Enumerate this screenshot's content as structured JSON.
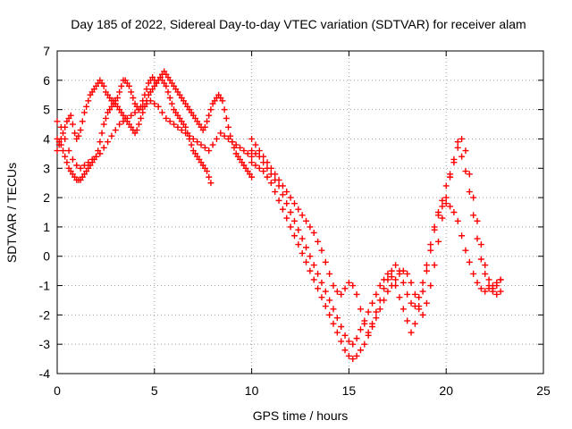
{
  "chart_data": {
    "type": "scatter",
    "title": "Day 185 of 2022, Sidereal Day-to-day VTEC variation (SDTVAR) for receiver alam",
    "xlabel": "GPS time / hours",
    "ylabel": "SDTVAR / TECUs",
    "xlim": [
      0,
      25
    ],
    "ylim": [
      -4,
      7
    ],
    "xticks": [
      "0",
      "5",
      "10",
      "15",
      "20",
      "25"
    ],
    "yticks": [
      "-4",
      "-3",
      "-2",
      "-1",
      "0",
      "1",
      "2",
      "3",
      "4",
      "5",
      "6",
      "7"
    ],
    "grid": true,
    "marker": "+",
    "color": "#ff0000",
    "series": [
      {
        "x": [
          0.0,
          0.1,
          0.2,
          0.3,
          0.4,
          0.5,
          0.6,
          0.7,
          0.8,
          0.9,
          1.0,
          1.1,
          1.2,
          1.3,
          1.4,
          1.5,
          1.6,
          1.7,
          1.8,
          1.9,
          2.0,
          2.1,
          2.2,
          2.3,
          2.4,
          2.5,
          2.6,
          2.7,
          2.8,
          2.9,
          3.0,
          3.1,
          3.2,
          3.3,
          3.4,
          3.5,
          3.6,
          3.7,
          3.8,
          3.9,
          4.0,
          4.1,
          4.2,
          4.3,
          4.4,
          4.5,
          4.6,
          4.7,
          4.8,
          4.9,
          5.0,
          5.1,
          5.2,
          5.3,
          5.4,
          5.5,
          5.6,
          5.7,
          5.8,
          5.9,
          6.0,
          6.1,
          6.2,
          6.3,
          6.4,
          6.5,
          6.6,
          6.7,
          6.8,
          6.9,
          7.0,
          7.1,
          7.2,
          7.3,
          7.4,
          7.5,
          7.6,
          7.7,
          7.8,
          7.9
        ],
        "y": [
          4.0,
          3.9,
          3.8,
          3.6,
          3.4,
          3.2,
          3.0,
          2.9,
          2.8,
          2.7,
          2.6,
          2.6,
          2.6,
          2.7,
          2.8,
          2.9,
          3.0,
          3.1,
          3.2,
          3.3,
          3.4,
          3.6,
          3.9,
          4.2,
          4.5,
          4.7,
          4.9,
          5.0,
          5.1,
          5.2,
          5.3,
          5.4,
          5.6,
          5.8,
          6.0,
          6.0,
          5.9,
          5.8,
          5.6,
          5.4,
          5.2,
          5.1,
          5.0,
          5.1,
          5.3,
          5.5,
          5.7,
          5.9,
          6.0,
          6.1,
          6.0,
          5.9,
          6.0,
          6.1,
          6.0,
          5.9,
          5.8,
          5.6,
          5.4,
          5.2,
          5.0,
          4.9,
          4.8,
          4.7,
          4.6,
          4.5,
          4.4,
          4.2,
          4.0,
          3.8,
          3.6,
          3.5,
          3.4,
          3.3,
          3.2,
          3.1,
          3.0,
          2.9,
          2.7,
          2.5
        ]
      },
      {
        "x": [
          0.0,
          0.1,
          0.2,
          0.3,
          0.4,
          0.5,
          0.6,
          0.7,
          0.8,
          0.9,
          1.0,
          1.1,
          1.2,
          1.3,
          1.4,
          1.5,
          1.6,
          1.7,
          1.8,
          1.9,
          2.0,
          2.1,
          2.2,
          2.3,
          2.4,
          2.5,
          2.6,
          2.7,
          2.8,
          2.9,
          3.0,
          3.1,
          3.2,
          3.3,
          3.4,
          3.5,
          3.6,
          3.7,
          3.8,
          3.9,
          4.0,
          4.1,
          4.2,
          4.3,
          4.4,
          4.5,
          4.6,
          4.7,
          4.8,
          4.9,
          5.0,
          5.1,
          5.2,
          5.3,
          5.4,
          5.5,
          5.6,
          5.7,
          5.8,
          5.9,
          6.0,
          6.1,
          6.2,
          6.3,
          6.4,
          6.5,
          6.6,
          6.7,
          6.8,
          6.9,
          7.0,
          7.1,
          7.2,
          7.3,
          7.4,
          7.5,
          7.6,
          7.7,
          7.8,
          7.9,
          8.0,
          8.1,
          8.2,
          8.3,
          8.4,
          8.5,
          8.6,
          8.7,
          8.8,
          8.9,
          9.0,
          9.1,
          9.2,
          9.3,
          9.4,
          9.5,
          9.6,
          9.7,
          9.8,
          9.9,
          10.0
        ],
        "y": [
          3.6,
          3.8,
          4.0,
          4.2,
          4.4,
          4.6,
          4.7,
          4.8,
          4.5,
          4.2,
          4.0,
          4.1,
          4.3,
          4.6,
          4.9,
          5.1,
          5.3,
          5.5,
          5.6,
          5.7,
          5.8,
          5.9,
          6.0,
          5.9,
          5.8,
          5.6,
          5.5,
          5.4,
          5.3,
          5.3,
          5.2,
          5.1,
          5.0,
          4.9,
          4.8,
          4.7,
          4.6,
          4.5,
          4.4,
          4.3,
          4.2,
          4.3,
          4.5,
          4.7,
          4.9,
          5.1,
          5.3,
          5.5,
          5.6,
          5.7,
          5.8,
          5.9,
          6.0,
          6.1,
          6.2,
          6.3,
          6.2,
          6.1,
          6.0,
          5.9,
          5.8,
          5.7,
          5.6,
          5.5,
          5.4,
          5.3,
          5.2,
          5.1,
          5.0,
          4.9,
          4.8,
          4.7,
          4.6,
          4.5,
          4.4,
          4.3,
          4.4,
          4.6,
          4.8,
          5.0,
          5.2,
          5.3,
          5.4,
          5.5,
          5.4,
          5.3,
          5.0,
          4.7,
          4.4,
          4.1,
          3.9,
          3.7,
          3.5,
          3.4,
          3.3,
          3.2,
          3.1,
          3.0,
          2.9,
          2.8,
          2.7
        ]
      },
      {
        "x": [
          0.0,
          0.2,
          0.4,
          0.6,
          0.8,
          1.0,
          1.2,
          1.4,
          1.6,
          1.8,
          2.0,
          2.2,
          2.4,
          2.6,
          2.8,
          3.0,
          3.2,
          3.4,
          3.6,
          3.8,
          4.0,
          4.2,
          4.4,
          4.6,
          4.8,
          5.0,
          5.2,
          5.4,
          5.6,
          5.8,
          6.0,
          6.2,
          6.4,
          6.6,
          6.8,
          7.0,
          7.2,
          7.4,
          7.6,
          7.8,
          8.0,
          8.2,
          8.4,
          8.6,
          8.8,
          9.0,
          9.2,
          9.4,
          9.6,
          9.8,
          10.0
        ],
        "y": [
          4.6,
          4.4,
          4.0,
          3.6,
          3.3,
          3.1,
          3.0,
          3.1,
          3.2,
          3.3,
          3.4,
          3.5,
          3.7,
          3.9,
          4.1,
          4.3,
          4.5,
          4.6,
          4.7,
          4.8,
          4.9,
          5.0,
          5.1,
          5.2,
          5.3,
          5.2,
          5.1,
          4.9,
          4.7,
          4.6,
          4.5,
          4.4,
          4.3,
          4.2,
          4.1,
          4.0,
          3.9,
          3.8,
          3.7,
          3.6,
          3.8,
          4.0,
          4.2,
          4.1,
          4.0,
          3.9,
          3.8,
          3.7,
          3.6,
          3.5,
          3.4
        ]
      },
      {
        "x": [
          10.0,
          10.2,
          10.4,
          10.6,
          10.8,
          11.0,
          11.2,
          11.4,
          11.6,
          11.8,
          12.0,
          12.2,
          12.4,
          12.6,
          12.8,
          13.0,
          13.2,
          13.4,
          13.6,
          13.8,
          14.0,
          14.2,
          14.4,
          14.6,
          14.8,
          15.0,
          15.2,
          15.4,
          15.6,
          15.8,
          16.0,
          16.2,
          16.4,
          16.6,
          16.8,
          17.0,
          17.2,
          17.4,
          17.6,
          17.8,
          18.0,
          18.2,
          18.4,
          18.6,
          18.8,
          19.0,
          19.2,
          19.4,
          19.6,
          19.8,
          20.0,
          20.2,
          20.4,
          20.6,
          20.8,
          21.0,
          21.2,
          21.4,
          21.6,
          21.8,
          22.0,
          22.2,
          22.4,
          22.6,
          22.8
        ],
        "y": [
          3.2,
          3.1,
          3.0,
          2.9,
          2.7,
          2.5,
          2.2,
          1.9,
          1.6,
          1.3,
          1.0,
          0.7,
          0.4,
          0.1,
          -0.2,
          -0.5,
          -0.8,
          -1.1,
          -1.4,
          -1.7,
          -2.0,
          -2.3,
          -2.6,
          -2.9,
          -3.2,
          -3.4,
          -3.5,
          -3.4,
          -3.2,
          -3.0,
          -2.7,
          -2.4,
          -2.1,
          -1.8,
          -1.5,
          -1.2,
          -1.0,
          -0.8,
          -0.6,
          -0.5,
          -0.6,
          -0.9,
          -1.3,
          -1.7,
          -2.0,
          -1.6,
          -1.0,
          -0.3,
          0.5,
          1.3,
          2.0,
          2.7,
          3.3,
          3.7,
          3.4,
          2.9,
          2.2,
          1.4,
          0.6,
          -0.1,
          -0.6,
          -1.0,
          -1.2,
          -1.3,
          -1.2
        ]
      },
      {
        "x": [
          10.0,
          10.2,
          10.4,
          10.6,
          10.8,
          11.0,
          11.2,
          11.4,
          11.6,
          11.8,
          12.0,
          12.2,
          12.4,
          12.6,
          12.8,
          13.0,
          13.2,
          13.4,
          13.6,
          13.8,
          14.0,
          14.2,
          14.4,
          14.6,
          14.8,
          15.0,
          15.2,
          15.4,
          15.6,
          15.8,
          16.0,
          16.2,
          16.4,
          16.6,
          16.8,
          17.0,
          17.2,
          17.4,
          17.6,
          17.8,
          18.0,
          18.2,
          18.4,
          18.6,
          18.8,
          19.0,
          19.2,
          19.4,
          19.6,
          19.8,
          20.0,
          20.2,
          20.4,
          20.6,
          20.8,
          21.0,
          21.2,
          21.4,
          21.6,
          21.8,
          22.0,
          22.2,
          22.4,
          22.6,
          22.8
        ],
        "y": [
          3.6,
          3.5,
          3.4,
          3.2,
          3.0,
          2.8,
          2.6,
          2.4,
          2.1,
          1.8,
          1.5,
          1.2,
          0.9,
          0.6,
          0.3,
          0.0,
          -0.3,
          -0.6,
          -0.9,
          -1.2,
          -1.5,
          -1.8,
          -2.1,
          -2.4,
          -2.7,
          -2.9,
          -3.0,
          -2.8,
          -2.5,
          -2.2,
          -1.9,
          -1.6,
          -1.3,
          -1.0,
          -0.8,
          -0.6,
          -0.7,
          -1.0,
          -1.4,
          -1.8,
          -2.2,
          -2.6,
          -2.3,
          -1.8,
          -1.2,
          -0.5,
          0.2,
          0.9,
          1.5,
          1.9,
          2.4,
          2.8,
          3.2,
          3.9,
          4.0,
          3.6,
          2.8,
          2.0,
          1.2,
          0.4,
          -0.3,
          -0.8,
          -1.1,
          -1.0,
          -0.8
        ]
      },
      {
        "x": [
          10.0,
          10.2,
          10.4,
          10.6,
          10.8,
          11.0,
          11.2,
          11.4,
          11.6,
          11.8,
          12.0,
          12.2,
          12.4,
          12.6,
          12.8,
          13.0,
          13.2,
          13.4,
          13.6,
          13.8,
          14.0,
          14.2,
          14.4,
          14.6,
          14.8,
          15.0,
          15.2,
          15.4,
          15.6,
          15.8,
          16.0,
          16.2,
          16.4,
          16.6,
          16.8,
          17.0,
          17.2,
          17.4,
          17.6,
          17.8,
          18.0,
          18.2,
          18.4,
          18.6,
          18.8,
          19.0,
          19.2,
          19.4,
          19.6,
          19.8,
          20.0,
          20.2,
          20.4,
          20.6,
          20.8,
          21.0,
          21.2,
          21.4,
          21.6,
          21.8,
          22.0,
          22.2,
          22.4,
          22.6,
          22.8
        ],
        "y": [
          4.0,
          3.8,
          3.6,
          3.4,
          3.2,
          3.0,
          2.8,
          2.6,
          2.4,
          2.2,
          2.0,
          1.8,
          1.6,
          1.4,
          1.2,
          1.0,
          0.8,
          0.5,
          0.2,
          -0.2,
          -0.6,
          -1.0,
          -1.2,
          -1.3,
          -1.1,
          -0.9,
          -1.0,
          -1.3,
          -1.8,
          -2.3,
          -2.6,
          -2.3,
          -1.9,
          -1.5,
          -1.1,
          -0.8,
          -0.5,
          -0.3,
          -0.5,
          -0.9,
          -1.3,
          -1.6,
          -1.7,
          -1.4,
          -0.9,
          -0.3,
          0.4,
          1.0,
          1.4,
          1.7,
          1.8,
          1.7,
          1.5,
          1.2,
          0.7,
          0.2,
          -0.2,
          -0.6,
          -0.9,
          -1.1,
          -1.2,
          -1.1,
          -1.0,
          -0.9,
          -0.8
        ]
      }
    ]
  }
}
